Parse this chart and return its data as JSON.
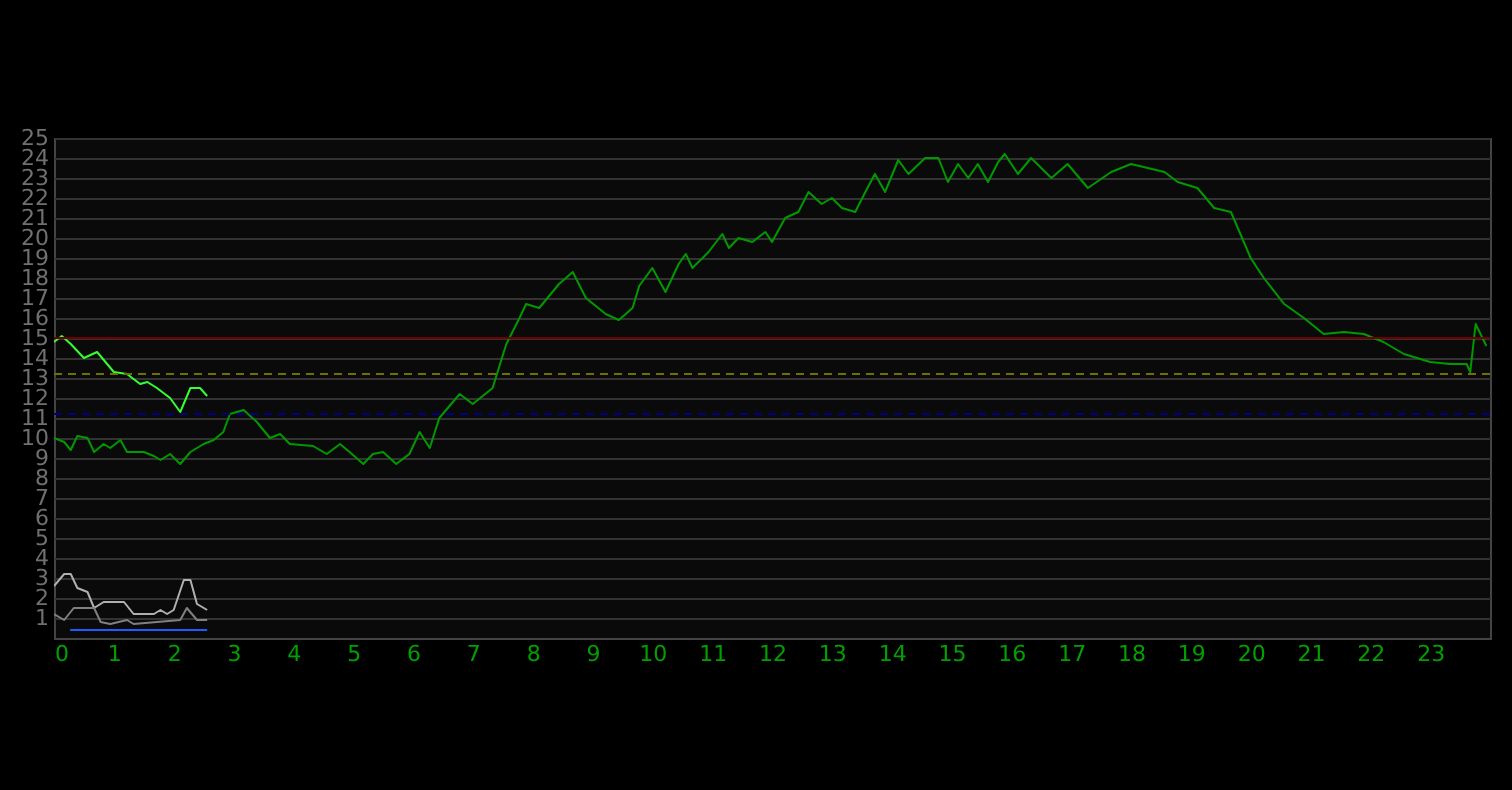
{
  "chart_data": {
    "type": "line",
    "xlim": [
      0,
      24
    ],
    "xticks": [
      0,
      1,
      2,
      3,
      4,
      5,
      6,
      7,
      8,
      9,
      10,
      11,
      12,
      13,
      14,
      15,
      16,
      17,
      18,
      19,
      20,
      21,
      22,
      23
    ],
    "ylim": [
      0,
      25
    ],
    "yticks": [
      1,
      2,
      3,
      4,
      5,
      6,
      7,
      8,
      9,
      10,
      11,
      12,
      13,
      14,
      15,
      16,
      17,
      18,
      19,
      20,
      21,
      22,
      23,
      24,
      25
    ],
    "grid": "y",
    "legend": false,
    "line_style": "solid",
    "marker": "none",
    "series": [
      {
        "color": "#009900",
        "x": [
          0,
          0.17,
          0.28,
          0.39,
          0.56,
          0.67,
          0.83,
          0.94,
          1.11,
          1.22,
          1.5,
          1.67,
          1.78,
          1.94,
          2.11,
          2.28,
          2.5,
          2.67,
          2.83,
          2.94,
          3.17,
          3.39,
          3.61,
          3.78,
          3.94,
          4.33,
          4.56,
          4.78,
          4.94,
          5.17,
          5.33,
          5.5,
          5.72,
          5.94,
          6.11,
          6.28,
          6.44,
          6.78,
          7.0,
          7.33,
          7.56,
          7.78,
          7.89,
          8.11,
          8.44,
          8.67,
          8.89,
          9.22,
          9.44,
          9.67,
          9.78,
          10.0,
          10.22,
          10.44,
          10.56,
          10.67,
          10.94,
          11.17,
          11.28,
          11.44,
          11.67,
          11.89,
          12.0,
          12.22,
          12.44,
          12.61,
          12.83,
          13.0,
          13.17,
          13.39,
          13.56,
          13.72,
          13.89,
          14.11,
          14.28,
          14.56,
          14.78,
          14.94,
          15.11,
          15.28,
          15.44,
          15.61,
          15.78,
          15.89,
          16.11,
          16.33,
          16.67,
          16.94,
          17.28,
          17.67,
          18.0,
          18.56,
          18.78,
          19.11,
          19.39,
          19.67,
          20.0,
          20.22,
          20.56,
          20.89,
          21.22,
          21.56,
          21.89,
          22.22,
          22.56,
          23.0,
          23.33,
          23.61,
          23.67,
          23.76,
          23.94
        ],
        "values": [
          10.0,
          9.8,
          9.4,
          10.1,
          10.0,
          9.3,
          9.7,
          9.5,
          9.9,
          9.3,
          9.3,
          9.1,
          8.9,
          9.2,
          8.7,
          9.3,
          9.7,
          9.9,
          10.3,
          11.2,
          11.4,
          10.8,
          10.0,
          10.2,
          9.7,
          9.6,
          9.2,
          9.7,
          9.3,
          8.7,
          9.2,
          9.3,
          8.7,
          9.2,
          10.3,
          9.5,
          11.0,
          12.2,
          11.7,
          12.5,
          14.7,
          16.0,
          16.7,
          16.5,
          17.7,
          18.3,
          17.0,
          16.2,
          15.9,
          16.5,
          17.6,
          18.5,
          17.3,
          18.7,
          19.2,
          18.5,
          19.3,
          20.2,
          19.5,
          20.0,
          19.8,
          20.3,
          19.8,
          21.0,
          21.3,
          22.3,
          21.7,
          22.0,
          21.5,
          21.3,
          22.3,
          23.2,
          22.3,
          23.9,
          23.2,
          24.0,
          24.0,
          22.8,
          23.7,
          23.0,
          23.7,
          22.8,
          23.8,
          24.2,
          23.2,
          24.0,
          23.0,
          23.7,
          22.5,
          23.3,
          23.7,
          23.3,
          22.8,
          22.5,
          21.5,
          21.3,
          19.0,
          18.0,
          16.7,
          16.0,
          15.2,
          15.3,
          15.2,
          14.8,
          14.2,
          13.8,
          13.7,
          13.7,
          13.3,
          15.7,
          14.6
        ]
      },
      {
        "color": "#33ff33",
        "x": [
          0,
          0.13,
          0.28,
          0.5,
          0.72,
          1.0,
          1.22,
          1.44,
          1.56,
          1.72,
          1.94,
          2.11,
          2.28,
          2.44,
          2.56
        ],
        "values": [
          14.8,
          15.1,
          14.7,
          14.0,
          14.3,
          13.3,
          13.2,
          12.7,
          12.8,
          12.5,
          12.0,
          11.3,
          12.5,
          12.5,
          12.1
        ]
      },
      {
        "color": "#b0b0b0",
        "x": [
          0,
          0.17,
          0.28,
          0.39,
          0.56,
          0.67,
          0.83,
          1.17,
          1.33,
          1.67,
          1.78,
          1.89,
          2.0,
          2.17,
          2.28,
          2.39,
          2.56
        ],
        "values": [
          2.6,
          3.2,
          3.2,
          2.5,
          2.3,
          1.5,
          1.8,
          1.8,
          1.2,
          1.2,
          1.4,
          1.2,
          1.4,
          2.9,
          2.9,
          1.7,
          1.4
        ]
      },
      {
        "color": "#808080",
        "x": [
          0,
          0.17,
          0.33,
          0.67,
          0.78,
          0.94,
          1.22,
          1.33,
          2.11,
          2.22,
          2.39,
          2.56
        ],
        "values": [
          1.2,
          0.9,
          1.5,
          1.5,
          0.8,
          0.7,
          0.9,
          0.7,
          0.9,
          1.5,
          0.9,
          0.9
        ]
      },
      {
        "color": "#1e5cff",
        "x": [
          0.27,
          2.56
        ],
        "values": [
          0.4,
          0.4
        ]
      }
    ],
    "ref_lines": [
      {
        "axis": "y",
        "value": 15,
        "color": "#700000",
        "line_style": "solid"
      },
      {
        "axis": "y",
        "value": 13.2,
        "color": "#707000",
        "line_style": "dashed"
      },
      {
        "axis": "y",
        "value": 11.2,
        "color": "#000080",
        "line_style": "dashed"
      }
    ]
  }
}
